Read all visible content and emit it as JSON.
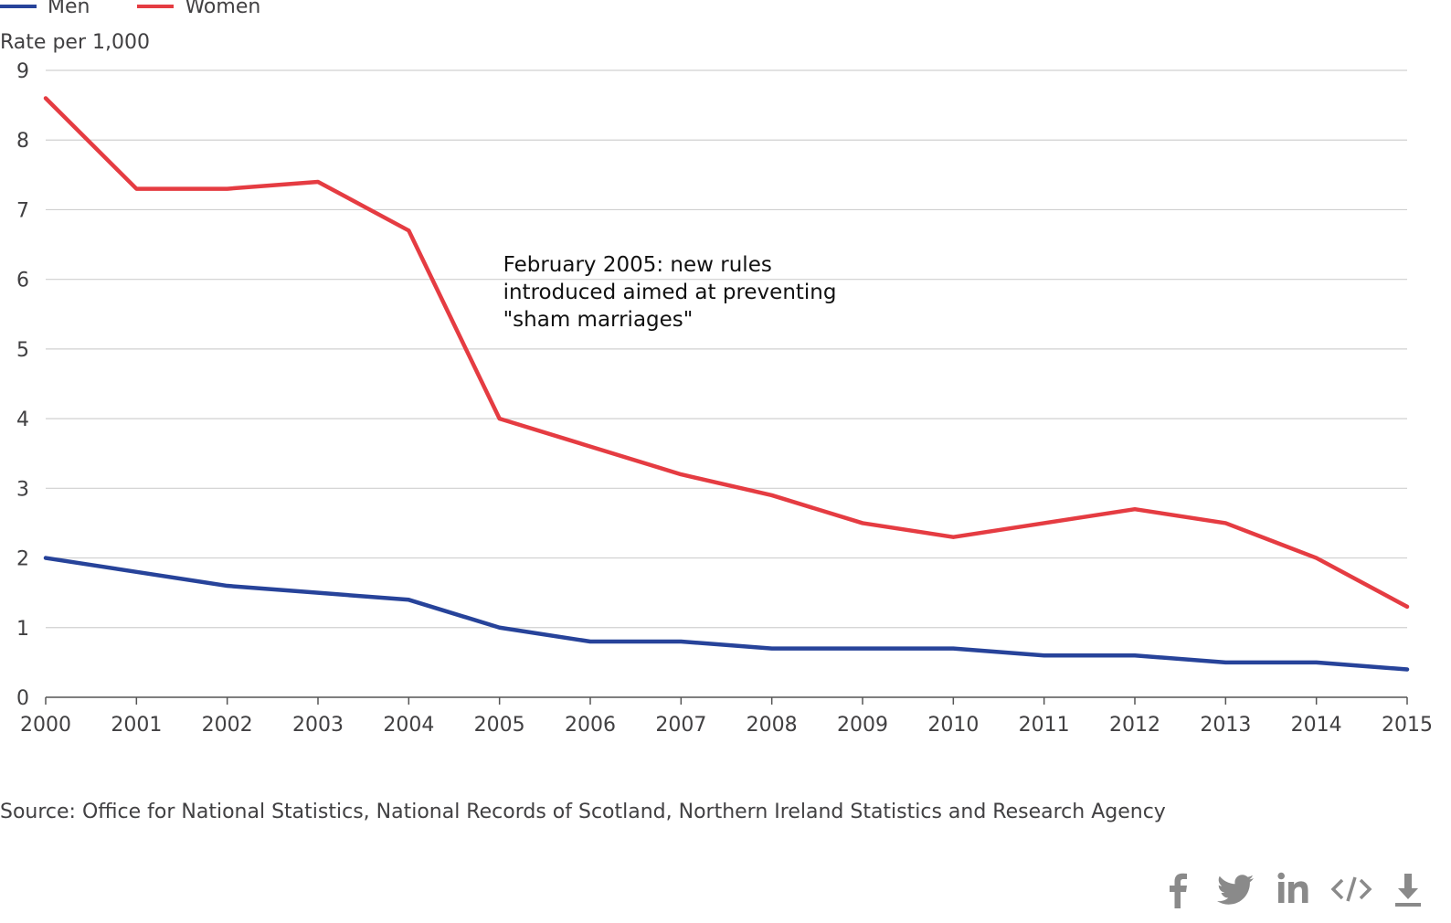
{
  "legend": [
    {
      "name": "Men",
      "color": "#27439a"
    },
    {
      "name": "Women",
      "color": "#e53c42"
    }
  ],
  "source_text": "Source: Office for National Statistics, National Records of Scotland, Northern Ireland Statistics and Research Agency",
  "social_icons": [
    "facebook-icon",
    "twitter-icon",
    "linkedin-icon",
    "embed-code-icon",
    "download-icon"
  ],
  "chart_data": {
    "type": "line",
    "title": "",
    "xlabel": "",
    "ylabel": "Rate per 1,000",
    "x": [
      2000,
      2001,
      2002,
      2003,
      2004,
      2005,
      2006,
      2007,
      2008,
      2009,
      2010,
      2011,
      2012,
      2013,
      2014,
      2015
    ],
    "xticks": [
      "2000",
      "2001",
      "2002",
      "2003",
      "2004",
      "2005",
      "2006",
      "2007",
      "2008",
      "2009",
      "2010",
      "2011",
      "2012",
      "2013",
      "2014",
      "2015"
    ],
    "ylim": [
      0,
      9
    ],
    "yticks": [
      "0",
      "1",
      "2",
      "3",
      "4",
      "5",
      "6",
      "7",
      "8",
      "9"
    ],
    "grid": true,
    "legend_position": "top-left",
    "series": [
      {
        "name": "Men",
        "color": "#27439a",
        "values": [
          2.0,
          1.8,
          1.6,
          1.5,
          1.4,
          1.0,
          0.8,
          0.8,
          0.7,
          0.7,
          0.7,
          0.6,
          0.6,
          0.5,
          0.5,
          0.4
        ]
      },
      {
        "name": "Women",
        "color": "#e53c42",
        "values": [
          8.6,
          7.3,
          7.3,
          7.4,
          6.7,
          4.0,
          3.6,
          3.2,
          2.9,
          2.5,
          2.3,
          2.5,
          2.7,
          2.5,
          2.0,
          1.3
        ]
      }
    ],
    "annotations": [
      {
        "lines": [
          "February 2005: new rules",
          "introduced aimed at preventing",
          "\"sham marriages\""
        ],
        "x": 2005.1,
        "y": 6.1
      }
    ]
  }
}
